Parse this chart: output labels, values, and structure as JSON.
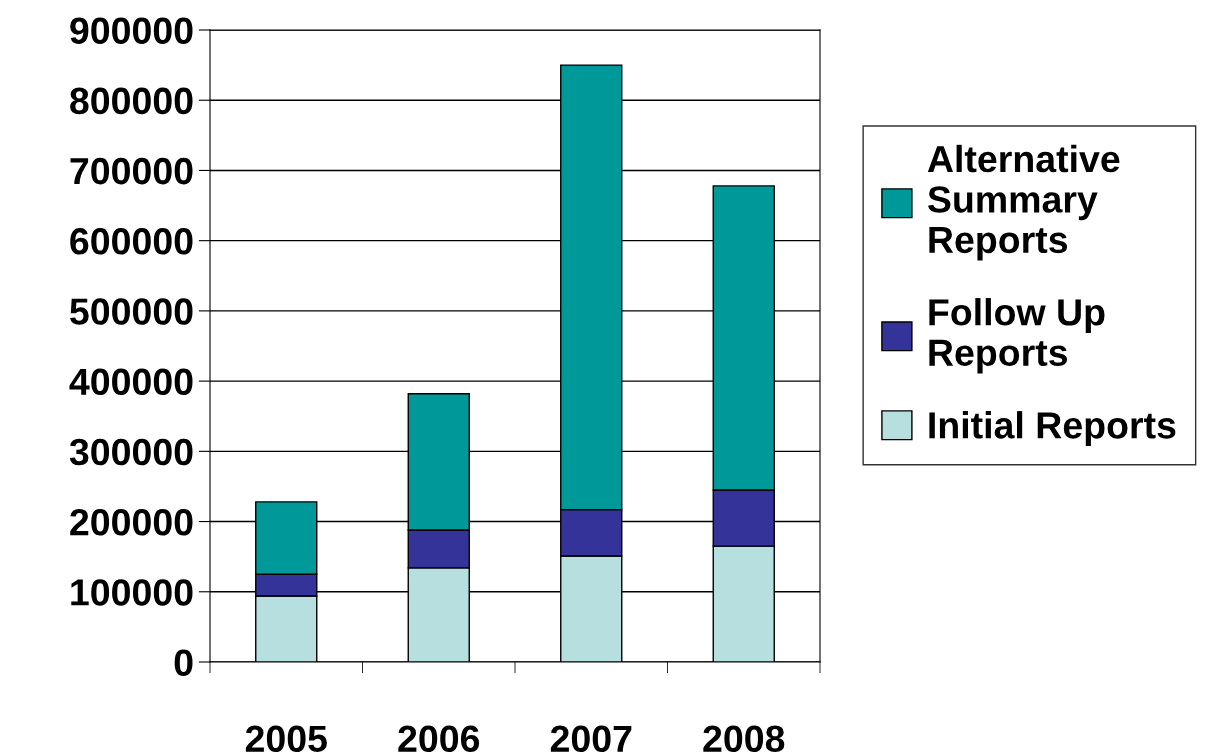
{
  "chart_data": {
    "type": "bar",
    "stacked": true,
    "categories": [
      "2005",
      "2006",
      "2007",
      "2008"
    ],
    "series": [
      {
        "name": "Initial Reports",
        "color": "#b8dfe0",
        "values": [
          94000,
          134000,
          151000,
          165000
        ]
      },
      {
        "name": "Follow Up\nReports",
        "color": "#333399",
        "values": [
          31000,
          54000,
          66000,
          80000
        ]
      },
      {
        "name": "Alternative\nSummary\nReports",
        "color": "#009999",
        "values": [
          103000,
          194000,
          633000,
          433000
        ]
      }
    ],
    "ylim": [
      0,
      900000
    ],
    "yticks": [
      0,
      100000,
      200000,
      300000,
      400000,
      500000,
      600000,
      700000,
      800000,
      900000
    ],
    "grid": "y",
    "legend": "right"
  }
}
